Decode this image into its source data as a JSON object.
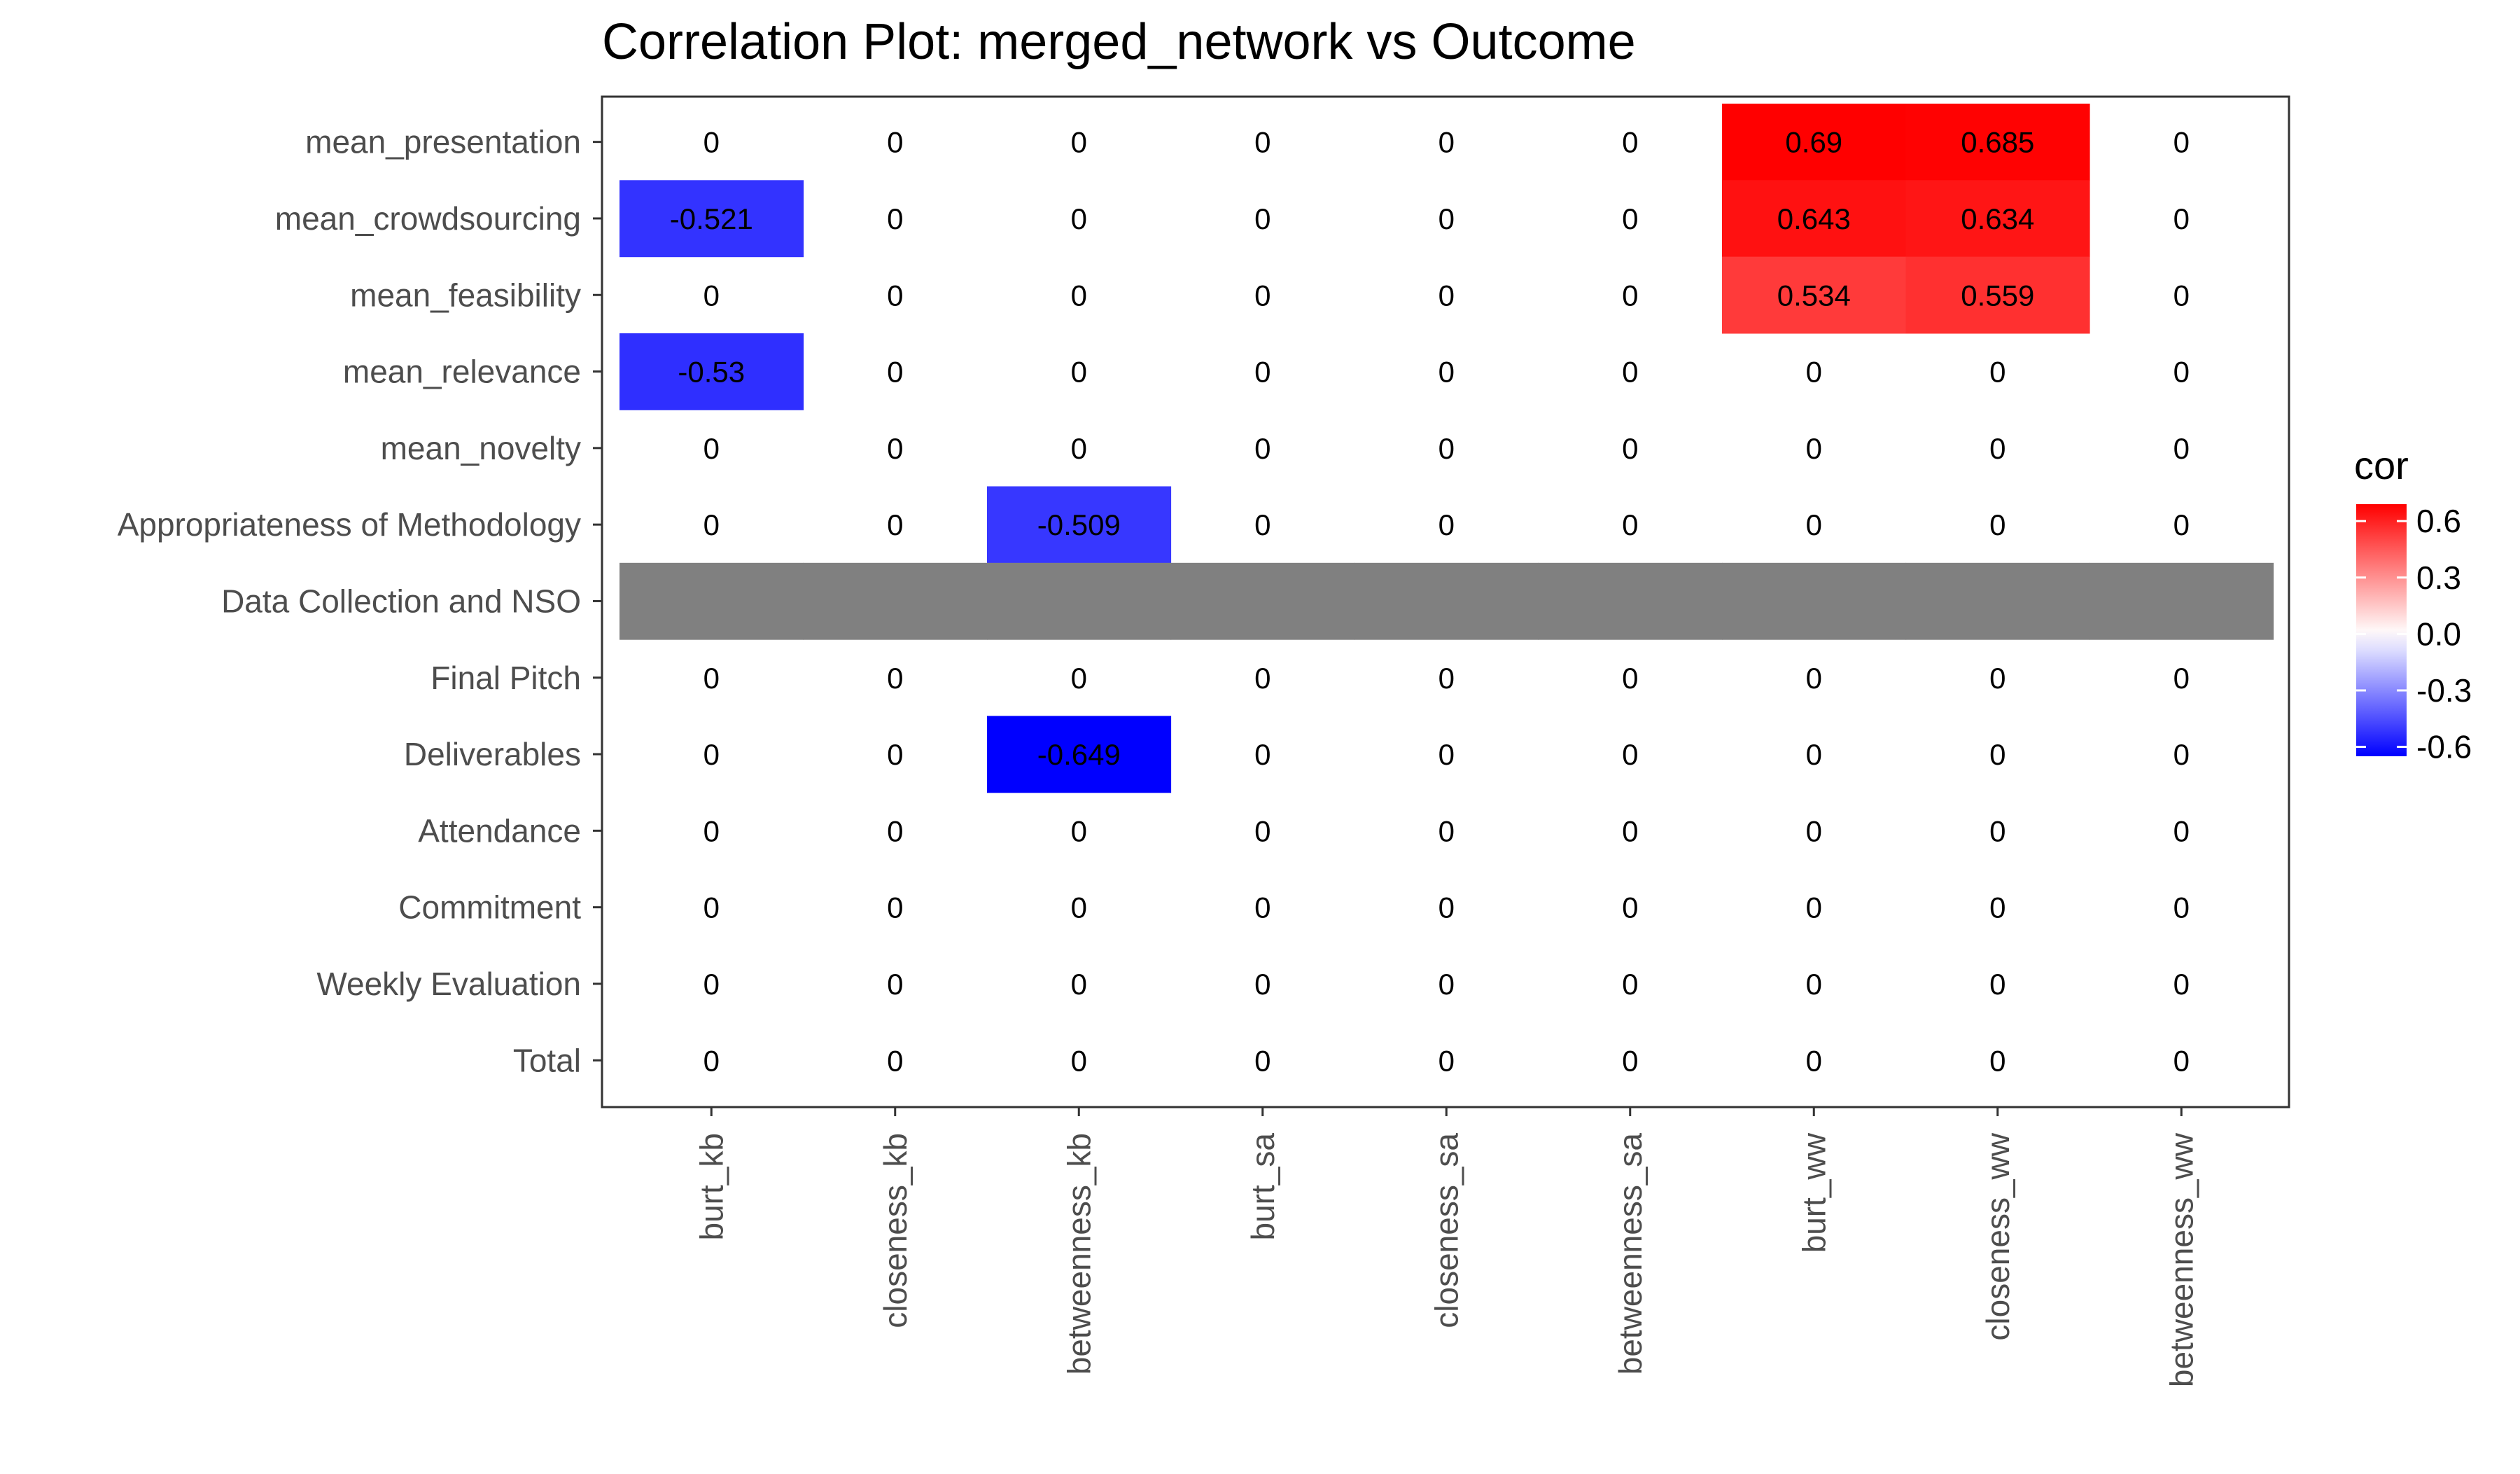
{
  "chart_data": {
    "type": "heatmap",
    "title": "Correlation Plot: merged_network vs Outcome",
    "x_categories": [
      "burt_kb",
      "closeness_kb",
      "betweenness_kb",
      "burt_sa",
      "closeness_sa",
      "betweenness_sa",
      "burt_ww",
      "closeness_ww",
      "betweenness_ww"
    ],
    "y_categories": [
      "mean_presentation",
      "mean_crowdsourcing",
      "mean_feasibility",
      "mean_relevance",
      "mean_novelty",
      "Appropriateness of Methodology",
      "Data Collection and NSO",
      "Final Pitch",
      "Deliverables",
      "Attendance",
      "Commitment",
      "Weekly Evaluation",
      "Total"
    ],
    "values": [
      [
        0,
        0,
        0,
        0,
        0,
        0,
        0.69,
        0.685,
        0
      ],
      [
        -0.521,
        0,
        0,
        0,
        0,
        0,
        0.643,
        0.634,
        0
      ],
      [
        0,
        0,
        0,
        0,
        0,
        0,
        0.534,
        0.559,
        0
      ],
      [
        -0.53,
        0,
        0,
        0,
        0,
        0,
        0,
        0,
        0
      ],
      [
        0,
        0,
        0,
        0,
        0,
        0,
        0,
        0,
        0
      ],
      [
        0,
        0,
        -0.509,
        0,
        0,
        0,
        0,
        0,
        0
      ],
      [
        null,
        null,
        null,
        null,
        null,
        null,
        null,
        null,
        null
      ],
      [
        0,
        0,
        0,
        0,
        0,
        0,
        0,
        0,
        0
      ],
      [
        0,
        0,
        -0.649,
        0,
        0,
        0,
        0,
        0,
        0
      ],
      [
        0,
        0,
        0,
        0,
        0,
        0,
        0,
        0,
        0
      ],
      [
        0,
        0,
        0,
        0,
        0,
        0,
        0,
        0,
        0
      ],
      [
        0,
        0,
        0,
        0,
        0,
        0,
        0,
        0,
        0
      ],
      [
        0,
        0,
        0,
        0,
        0,
        0,
        0,
        0,
        0
      ]
    ],
    "cell_labels": [
      [
        "0",
        "0",
        "0",
        "0",
        "0",
        "0",
        "0.69",
        "0.685",
        "0"
      ],
      [
        "-0.521",
        "0",
        "0",
        "0",
        "0",
        "0",
        "0.643",
        "0.634",
        "0"
      ],
      [
        "0",
        "0",
        "0",
        "0",
        "0",
        "0",
        "0.534",
        "0.559",
        "0"
      ],
      [
        "-0.53",
        "0",
        "0",
        "0",
        "0",
        "0",
        "0",
        "0",
        "0"
      ],
      [
        "0",
        "0",
        "0",
        "0",
        "0",
        "0",
        "0",
        "0",
        "0"
      ],
      [
        "0",
        "0",
        "-0.509",
        "0",
        "0",
        "0",
        "0",
        "0",
        "0"
      ],
      [
        "",
        "",
        "",
        "",
        "",
        "",
        "",
        "",
        ""
      ],
      [
        "0",
        "0",
        "0",
        "0",
        "0",
        "0",
        "0",
        "0",
        "0"
      ],
      [
        "0",
        "0",
        "-0.649",
        "0",
        "0",
        "0",
        "0",
        "0",
        "0"
      ],
      [
        "0",
        "0",
        "0",
        "0",
        "0",
        "0",
        "0",
        "0",
        "0"
      ],
      [
        "0",
        "0",
        "0",
        "0",
        "0",
        "0",
        "0",
        "0",
        "0"
      ],
      [
        "0",
        "0",
        "0",
        "0",
        "0",
        "0",
        "0",
        "0",
        "0"
      ],
      [
        "0",
        "0",
        "0",
        "0",
        "0",
        "0",
        "0",
        "0",
        "0"
      ]
    ],
    "zero_cells_filled": false,
    "na_color": "#808080",
    "legend": {
      "title": "cor",
      "placement": "right",
      "ticks": [
        0.6,
        0.3,
        0.0,
        -0.3,
        -0.6
      ],
      "tick_labels": [
        "0.6",
        "0.3",
        "0.0",
        "-0.3",
        "-0.6"
      ],
      "range": [
        -0.65,
        0.69
      ],
      "low_color": "#0000ff",
      "mid_color": "#ffffff",
      "high_color": "#ff0000"
    },
    "panel_border_color": "#333333",
    "tick_color": "#333333",
    "grid": false
  }
}
